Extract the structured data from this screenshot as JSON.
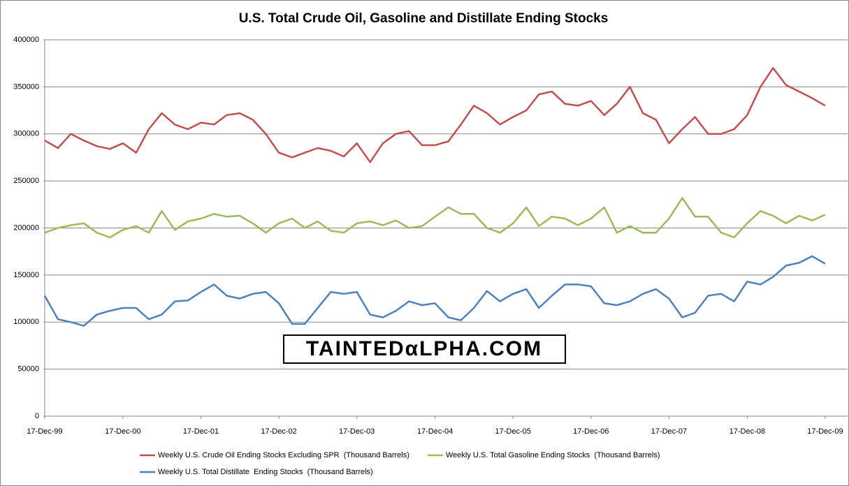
{
  "chart_data": {
    "type": "line",
    "title": "U.S. Total Crude Oil, Gasoline and Distillate Ending Stocks",
    "annotation": "TAINTEDαLPHA.COM",
    "x": [
      "1999-12-17",
      "2000-02-17",
      "2000-04-17",
      "2000-06-17",
      "2000-08-17",
      "2000-10-17",
      "2000-12-17",
      "2001-02-17",
      "2001-04-17",
      "2001-06-17",
      "2001-08-17",
      "2001-10-17",
      "2001-12-17",
      "2002-02-17",
      "2002-04-17",
      "2002-06-17",
      "2002-08-17",
      "2002-10-17",
      "2002-12-17",
      "2003-02-17",
      "2003-04-17",
      "2003-06-17",
      "2003-08-17",
      "2003-10-17",
      "2003-12-17",
      "2004-02-17",
      "2004-04-17",
      "2004-06-17",
      "2004-08-17",
      "2004-10-17",
      "2004-12-17",
      "2005-02-17",
      "2005-04-17",
      "2005-06-17",
      "2005-08-17",
      "2005-10-17",
      "2005-12-17",
      "2006-02-17",
      "2006-04-17",
      "2006-06-17",
      "2006-08-17",
      "2006-10-17",
      "2006-12-17",
      "2007-02-17",
      "2007-04-17",
      "2007-06-17",
      "2007-08-17",
      "2007-10-17",
      "2007-12-17",
      "2008-02-17",
      "2008-04-17",
      "2008-06-17",
      "2008-08-17",
      "2008-10-17",
      "2008-12-17",
      "2009-02-17",
      "2009-04-17",
      "2009-06-17",
      "2009-08-17",
      "2009-10-17",
      "2009-12-17"
    ],
    "series": [
      {
        "name": "Weekly U.S. Crude Oil Ending Stocks Excluding SPR  (Thousand Barrels)",
        "color": "#c0504d",
        "values": [
          293000,
          285000,
          300000,
          293000,
          287000,
          284000,
          290000,
          280000,
          305000,
          322000,
          310000,
          305000,
          312000,
          310000,
          320000,
          322000,
          315000,
          300000,
          280000,
          275000,
          280000,
          285000,
          282000,
          276000,
          290000,
          270000,
          290000,
          300000,
          303000,
          288000,
          288000,
          292000,
          310000,
          330000,
          322000,
          310000,
          318000,
          325000,
          342000,
          345000,
          332000,
          330000,
          335000,
          320000,
          332000,
          350000,
          322000,
          315000,
          290000,
          305000,
          318000,
          300000,
          300000,
          305000,
          320000,
          350000,
          370000,
          352000,
          345000,
          338000,
          330000
        ]
      },
      {
        "name": "Weekly U.S. Total Gasoline Ending Stocks  (Thousand Barrels)",
        "color": "#9bbb59",
        "values": [
          195000,
          200000,
          203000,
          205000,
          195000,
          190000,
          198000,
          202000,
          195000,
          218000,
          198000,
          207000,
          210000,
          215000,
          212000,
          213000,
          205000,
          195000,
          205000,
          210000,
          200000,
          207000,
          197000,
          195000,
          205000,
          207000,
          203000,
          208000,
          200000,
          202000,
          212000,
          222000,
          215000,
          215000,
          200000,
          195000,
          205000,
          222000,
          202000,
          212000,
          210000,
          203000,
          210000,
          222000,
          195000,
          202000,
          195000,
          195000,
          210000,
          232000,
          212000,
          212000,
          195000,
          190000,
          205000,
          218000,
          213000,
          205000,
          213000,
          208000,
          214000
        ]
      },
      {
        "name": "Weekly U.S. Total Distillate  Ending Stocks  (Thousand Barrels)",
        "color": "#4f81bd",
        "values": [
          128000,
          103000,
          100000,
          96000,
          108000,
          112000,
          115000,
          115000,
          103000,
          108000,
          122000,
          123000,
          132000,
          140000,
          128000,
          125000,
          130000,
          132000,
          120000,
          98000,
          98000,
          115000,
          132000,
          130000,
          132000,
          108000,
          105000,
          112000,
          122000,
          118000,
          120000,
          105000,
          102000,
          115000,
          133000,
          122000,
          130000,
          135000,
          115000,
          128000,
          140000,
          140000,
          138000,
          120000,
          118000,
          122000,
          130000,
          135000,
          125000,
          105000,
          110000,
          128000,
          130000,
          122000,
          143000,
          140000,
          148000,
          160000,
          163000,
          170000,
          162000
        ]
      }
    ],
    "xlim": [
      "1999-12-17",
      "2010-04-01"
    ],
    "xticks": [
      {
        "value": "1999-12-17",
        "label": "17-Dec-99"
      },
      {
        "value": "2000-12-17",
        "label": "17-Dec-00"
      },
      {
        "value": "2001-12-17",
        "label": "17-Dec-01"
      },
      {
        "value": "2002-12-17",
        "label": "17-Dec-02"
      },
      {
        "value": "2003-12-17",
        "label": "17-Dec-03"
      },
      {
        "value": "2004-12-17",
        "label": "17-Dec-04"
      },
      {
        "value": "2005-12-17",
        "label": "17-Dec-05"
      },
      {
        "value": "2006-12-17",
        "label": "17-Dec-06"
      },
      {
        "value": "2007-12-17",
        "label": "17-Dec-07"
      },
      {
        "value": "2008-12-17",
        "label": "17-Dec-08"
      },
      {
        "value": "2009-12-17",
        "label": "17-Dec-09"
      }
    ],
    "ylim": [
      0,
      400000
    ],
    "yticks": [
      0,
      50000,
      100000,
      150000,
      200000,
      250000,
      300000,
      350000,
      400000
    ],
    "grid": true,
    "legend": "bottom"
  }
}
